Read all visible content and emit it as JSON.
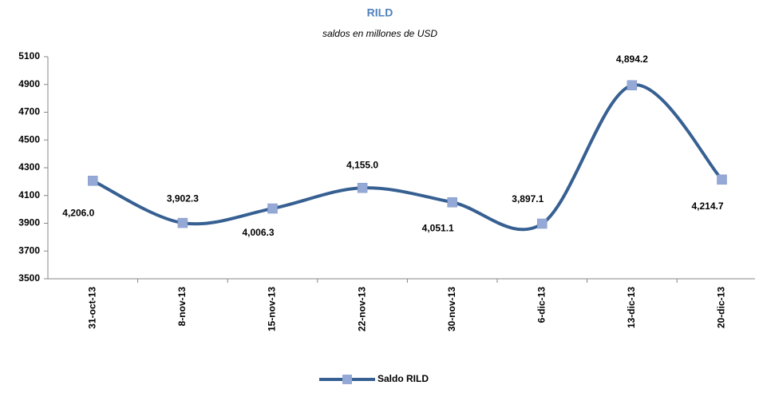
{
  "chart_data": {
    "type": "line",
    "title": "RILD",
    "subtitle": "saldos en millones de USD",
    "categories": [
      "31-oct-13",
      "8-nov-13",
      "15-nov-13",
      "22-nov-13",
      "30-nov-13",
      "6-dic-13",
      "13-dic-13",
      "20-dic-13"
    ],
    "series": [
      {
        "name": "Saldo RILD",
        "color": "#376092",
        "marker_color": "#95a9d6",
        "values": [
          4206.0,
          3902.3,
          4006.3,
          4155.0,
          4051.1,
          3897.1,
          4894.2,
          4214.7
        ],
        "value_labels": [
          "4,206.0",
          "3,902.3",
          "4,006.3",
          "4,155.0",
          "4,051.1",
          "3,897.1",
          "4,894.2",
          "4,214.7"
        ]
      }
    ],
    "ylim": [
      3500,
      5100
    ],
    "yticks": [
      3500,
      3700,
      3900,
      4100,
      4300,
      4500,
      4700,
      4900,
      5100
    ],
    "grid": false,
    "legend": "bottom"
  }
}
